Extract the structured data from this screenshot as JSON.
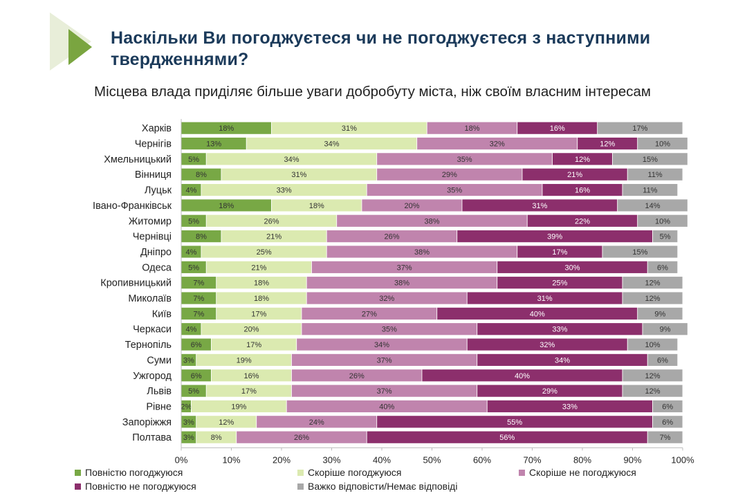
{
  "title": "Наскільки Ви погоджуєтеся чи не погоджуєтеся з наступними твердженнями?",
  "subtitle": "Місцева влада приділяє більше уваги добробуту міста, ніж своїм власним інтересам",
  "chart_data": {
    "type": "bar",
    "orientation": "horizontal",
    "stacked": true,
    "categories": [
      "Харків",
      "Чернігів",
      "Хмельницький",
      "Вінниця",
      "Луцьк",
      "Івано-Франківськ",
      "Житомир",
      "Чернівці",
      "Дніпро",
      "Одеса",
      "Кропивницький",
      "Миколаїв",
      "Київ",
      "Черкаси",
      "Тернопіль",
      "Суми",
      "Ужгород",
      "Львів",
      "Рівне",
      "Запоріжжя",
      "Полтава"
    ],
    "series": [
      {
        "name": "Повністю погоджуюся",
        "color": "#78a845",
        "values": [
          18,
          13,
          5,
          8,
          4,
          18,
          5,
          8,
          4,
          5,
          7,
          7,
          7,
          4,
          6,
          3,
          6,
          5,
          2,
          3,
          3
        ]
      },
      {
        "name": "Скоріше погоджуюся",
        "color": "#dbeab0",
        "values": [
          31,
          34,
          34,
          31,
          33,
          18,
          26,
          21,
          25,
          21,
          18,
          18,
          17,
          20,
          17,
          19,
          16,
          17,
          19,
          12,
          8
        ]
      },
      {
        "name": "Скоріше не погоджуюся",
        "color": "#c084ad",
        "values": [
          18,
          32,
          35,
          29,
          35,
          20,
          38,
          26,
          38,
          37,
          38,
          32,
          27,
          35,
          34,
          37,
          26,
          37,
          40,
          24,
          26
        ]
      },
      {
        "name": "Повністю не погоджуюся",
        "color": "#8c2f6c",
        "values": [
          16,
          12,
          12,
          21,
          16,
          31,
          22,
          39,
          17,
          30,
          25,
          31,
          40,
          33,
          32,
          34,
          40,
          29,
          33,
          55,
          56
        ]
      },
      {
        "name": "Важко відповісти/Немає відповіді",
        "color": "#a8a8a8",
        "values": [
          17,
          10,
          15,
          11,
          11,
          14,
          10,
          5,
          15,
          6,
          12,
          12,
          9,
          9,
          10,
          6,
          12,
          12,
          6,
          6,
          7
        ]
      }
    ],
    "value_suffix": "%",
    "xlim": [
      0,
      100
    ],
    "xticks": [
      "0%",
      "10%",
      "20%",
      "30%",
      "40%",
      "50%",
      "60%",
      "70%",
      "80%",
      "90%",
      "100%"
    ],
    "grid": false,
    "legend_position": "bottom"
  }
}
